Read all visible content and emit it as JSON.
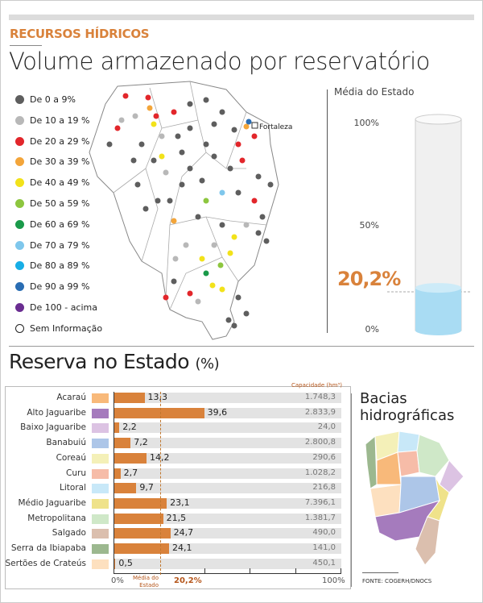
{
  "header": {
    "kicker": "RECURSOS HÍDRICOS",
    "title": "Volume armazenado por reservatório"
  },
  "map": {
    "city_label": "Fortaleza",
    "legend": [
      {
        "label": "De 0 a 9%",
        "color": "#5e5e5e"
      },
      {
        "label": "De 10 a 19 %",
        "color": "#b8b8b8"
      },
      {
        "label": "De 20 a 29 %",
        "color": "#e2262b"
      },
      {
        "label": "De 30 a 39 %",
        "color": "#f3a53a"
      },
      {
        "label": "De 40 a 49 %",
        "color": "#f2e21a"
      },
      {
        "label": "De 50 a 59 %",
        "color": "#8dc63f"
      },
      {
        "label": "De 60 a 69 %",
        "color": "#1a9a4a"
      },
      {
        "label": "De 70 a 79 %",
        "color": "#7fc7ec"
      },
      {
        "label": "De 80 a 89 %",
        "color": "#17aee6"
      },
      {
        "label": "De 90 a 99 %",
        "color": "#2a6db3"
      },
      {
        "label": "De 100 - acima",
        "color": "#6a2d91"
      },
      {
        "label": "Sem Informação",
        "color": "none"
      }
    ]
  },
  "gauge": {
    "label": "Média do Estado",
    "ticks": [
      "100%",
      "50%",
      "0%"
    ],
    "value": 20.2,
    "value_label": "20,2%",
    "fill_color": "#a9dcf3"
  },
  "chart_data": {
    "type": "bar",
    "title": "Reserva no Estado",
    "title_unit": "(%)",
    "categories": [
      "Acaraú",
      "Alto Jaguaribe",
      "Baixo Jaguaribe",
      "Banabuiú",
      "Coreaú",
      "Curu",
      "Litoral",
      "Médio Jaguaribe",
      "Metropolitana",
      "Salgado",
      "Serra da Ibiapaba",
      "Sertões de Crateús"
    ],
    "values": [
      13.3,
      39.6,
      2.2,
      7.2,
      14.2,
      2.7,
      9.7,
      23.1,
      21.5,
      24.7,
      24.1,
      0.5
    ],
    "value_labels": [
      "13,3",
      "39,6",
      "2,2",
      "7,2",
      "14,2",
      "2,7",
      "9,7",
      "23,1",
      "21,5",
      "24,7",
      "24,1",
      "0,5"
    ],
    "capacity_header": "Capacidade (hm³)",
    "capacity": [
      "1.748,3",
      "2.833,9",
      "24,0",
      "2.800,8",
      "290,6",
      "1.028,2",
      "216,8",
      "7.396,1",
      "1.381,7",
      "490,0",
      "141,0",
      "450,1"
    ],
    "swatch_colors": [
      "#f8b97a",
      "#a57bbd",
      "#dcc3e3",
      "#adc6e8",
      "#f4f0b8",
      "#f6bca8",
      "#c8e8f8",
      "#efe28a",
      "#cfe8c8",
      "#dbbfae",
      "#9cb88f",
      "#fde0bf"
    ],
    "xlim": [
      0,
      100
    ],
    "x_tick_labels": [
      "0%",
      "100%"
    ],
    "average": 20.2,
    "average_label": "Média do Estado",
    "average_value_label": "20,2%",
    "bar_color": "#d9823b"
  },
  "basins": {
    "title_line1": "Bacias",
    "title_line2": "hidrográficas",
    "source": "FONTE: COGERH/DNOCS"
  }
}
